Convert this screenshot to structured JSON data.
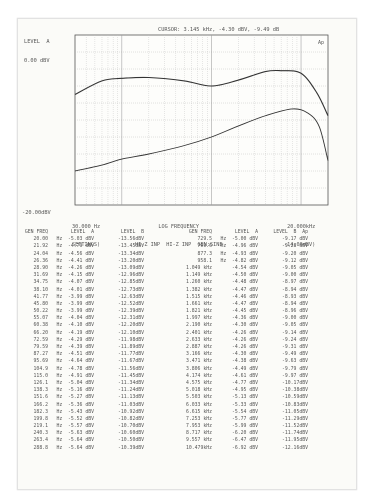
{
  "header": {
    "level_label": "LEVEL  A",
    "top_value": "0.00 dBV",
    "bottom_value": "-20.00dBV",
    "cursor_text": "CURSOR: 3.145 kHz, -4.30 dBV, -9.49 dB"
  },
  "chart_data": {
    "type": "line",
    "xscale": "log",
    "xlim": [
      30,
      20000
    ],
    "ylim": [
      -20,
      0
    ],
    "marker_label": "Ap",
    "series": [
      {
        "x": [
          30,
          60,
          100,
          200,
          500,
          1000,
          2000,
          4000,
          6000,
          10000,
          15000,
          20000
        ],
        "values": [
          -7.0,
          -5.4,
          -5.1,
          -5.0,
          -5.4,
          -6.0,
          -5.3,
          -4.3,
          -4.2,
          -4.5,
          -6.8,
          -9.5
        ]
      },
      {
        "x": [
          30,
          60,
          100,
          200,
          500,
          1000,
          2000,
          4000,
          8000,
          12000,
          16000,
          20000
        ],
        "values": [
          -16.0,
          -15.3,
          -14.6,
          -14.0,
          -13.0,
          -12.0,
          -10.7,
          -9.5,
          -8.7,
          -9.2,
          -10.8,
          -14.8
        ]
      }
    ]
  },
  "footer": {
    "left_line1": "30.000 Hz",
    "left_line2": "SETTINGS)",
    "mid_line1": "LOG FREQUENCY",
    "mid_line2": "HI-Z INP  HI-Z INP  GEN:SINE",
    "right_line1": "20.000kHz",
    "right_line2": "-14.06dBV)"
  },
  "table_header": [
    "GEN FREQ",
    "LEVEL  A",
    "LEVEL  B"
  ],
  "table_left": [
    [
      "20.00",
      "Hz  -5.03 dBV",
      "-13.56dBV"
    ],
    [
      "21.92",
      "Hz  -4.79 dBV",
      "-13.45dBV"
    ],
    [
      "24.04",
      "Hz  -4.56 dBV",
      "-13.34dBV"
    ],
    [
      "26.36",
      "Hz  -4.41 dBV",
      "-13.20dBV"
    ],
    [
      "28.90",
      "Hz  -4.26 dBV",
      "-13.09dBV"
    ],
    [
      "31.69",
      "Hz  -4.15 dBV",
      "-12.96dBV"
    ],
    [
      "34.75",
      "Hz  -4.07 dBV",
      "-12.85dBV"
    ],
    [
      "38.10",
      "Hz  -4.01 dBV",
      "-12.73dBV"
    ],
    [
      "41.77",
      "Hz  -3.99 dBV",
      "-12.63dBV"
    ],
    [
      "45.80",
      "Hz  -3.99 dBV",
      "-12.52dBV"
    ],
    [
      "50.22",
      "Hz  -3.99 dBV",
      "-12.39dBV"
    ],
    [
      "55.07",
      "Hz  -4.04 dBV",
      "-12.31dBV"
    ],
    [
      "60.38",
      "Hz  -4.10 dBV",
      "-12.20dBV"
    ],
    [
      "66.20",
      "Hz  -4.19 dBV",
      "-12.10dBV"
    ],
    [
      "72.59",
      "Hz  -4.29 dBV",
      "-11.98dBV"
    ],
    [
      "79.59",
      "Hz  -4.39 dBV",
      "-11.89dBV"
    ],
    [
      "87.27",
      "Hz  -4.51 dBV",
      "-11.77dBV"
    ],
    [
      "95.69",
      "Hz  -4.64 dBV",
      "-11.67dBV"
    ],
    [
      "104.9",
      "Hz  -4.78 dBV",
      "-11.56dBV"
    ],
    [
      "115.0",
      "Hz  -4.91 dBV",
      "-11.45dBV"
    ],
    [
      "126.1",
      "Hz  -5.04 dBV",
      "-11.34dBV"
    ],
    [
      "138.3",
      "Hz  -5.16 dBV",
      "-11.24dBV"
    ],
    [
      "151.6",
      "Hz  -5.27 dBV",
      "-11.13dBV"
    ],
    [
      "166.2",
      "Hz  -5.36 dBV",
      "-11.03dBV"
    ],
    [
      "182.3",
      "Hz  -5.43 dBV",
      "-10.92dBV"
    ],
    [
      "199.8",
      "Hz  -5.52 dBV",
      "-10.82dBV"
    ],
    [
      "219.1",
      "Hz  -5.57 dBV",
      "-10.70dBV"
    ],
    [
      "240.3",
      "Hz  -5.63 dBV",
      "-10.60dBV"
    ],
    [
      "263.4",
      "Hz  -5.64 dBV",
      "-10.50dBV"
    ],
    [
      "288.8",
      "Hz  -5.64 dBV",
      "-10.39dBV"
    ]
  ],
  "table_right_header": [
    "GEN FREQ",
    "LEVEL  A",
    "LEVEL  B  Ap"
  ],
  "table_right": [
    [
      "729.5",
      "Hz  -5.00 dBV",
      "-9.17 dBV"
    ],
    [
      "799.6",
      "Hz  -4.96 dBV",
      "-9.28 dBV"
    ],
    [
      "877.3",
      "Hz  -4.93 dBV",
      "-9.20 dBV"
    ],
    [
      "958.1",
      "Hz  -4.82 dBV",
      "-9.12 dBV"
    ],
    [
      "1.049 kHz",
      "-4.54 dBV",
      "-9.05 dBV"
    ],
    [
      "1.149 kHz",
      "-4.50 dBV",
      "-9.00 dBV"
    ],
    [
      "1.260 kHz",
      "-4.48 dBV",
      "-8.97 dBV"
    ],
    [
      "1.382 kHz",
      "-4.47 dBV",
      "-8.94 dBV"
    ],
    [
      "1.515 kHz",
      "-4.46 dBV",
      "-8.93 dBV"
    ],
    [
      "1.661 kHz",
      "-4.47 dBV",
      "-8.94 dBV"
    ],
    [
      "1.821 kHz",
      "-4.45 dBV",
      "-8.96 dBV"
    ],
    [
      "1.997 kHz",
      "-4.36 dBV",
      "-9.00 dBV"
    ],
    [
      "2.190 kHz",
      "-4.30 dBV",
      "-9.05 dBV"
    ],
    [
      "2.401 kHz",
      "-4.26 dBV",
      "-9.14 dBV"
    ],
    [
      "2.633 kHz",
      "-4.26 dBV",
      "-9.24 dBV"
    ],
    [
      "2.887 kHz",
      "-4.26 dBV",
      "-9.31 dBV"
    ],
    [
      "3.166 kHz",
      "-4.30 dBV",
      "-9.49 dBV"
    ],
    [
      "3.471 kHz",
      "-4.38 dBV",
      "-9.63 dBV"
    ],
    [
      "3.806 kHz",
      "-4.49 dBV",
      "-9.79 dBV"
    ],
    [
      "4.174 kHz",
      "-4.61 dBV",
      "-9.97 dBV"
    ],
    [
      "4.575 kHz",
      "-4.77 dBV",
      "-10.17dBV"
    ],
    [
      "5.018 kHz",
      "-4.95 dBV",
      "-10.38dBV"
    ],
    [
      "5.503 kHz",
      "-5.13 dBV",
      "-10.59dBV"
    ],
    [
      "6.033 kHz",
      "-5.33 dBV",
      "-10.83dBV"
    ],
    [
      "6.615 kHz",
      "-5.54 dBV",
      "-11.05dBV"
    ],
    [
      "7.253 kHz",
      "-5.77 dBV",
      "-11.29dBV"
    ],
    [
      "7.953 kHz",
      "-5.99 dBV",
      "-11.52dBV"
    ],
    [
      "8.717 kHz",
      "-6.20 dBV",
      "-11.74dBV"
    ],
    [
      "9.557 kHz",
      "-6.47 dBV",
      "-11.95dBV"
    ],
    [
      "10.479kHz",
      "-6.92 dBV",
      "-12.16dBV"
    ]
  ]
}
